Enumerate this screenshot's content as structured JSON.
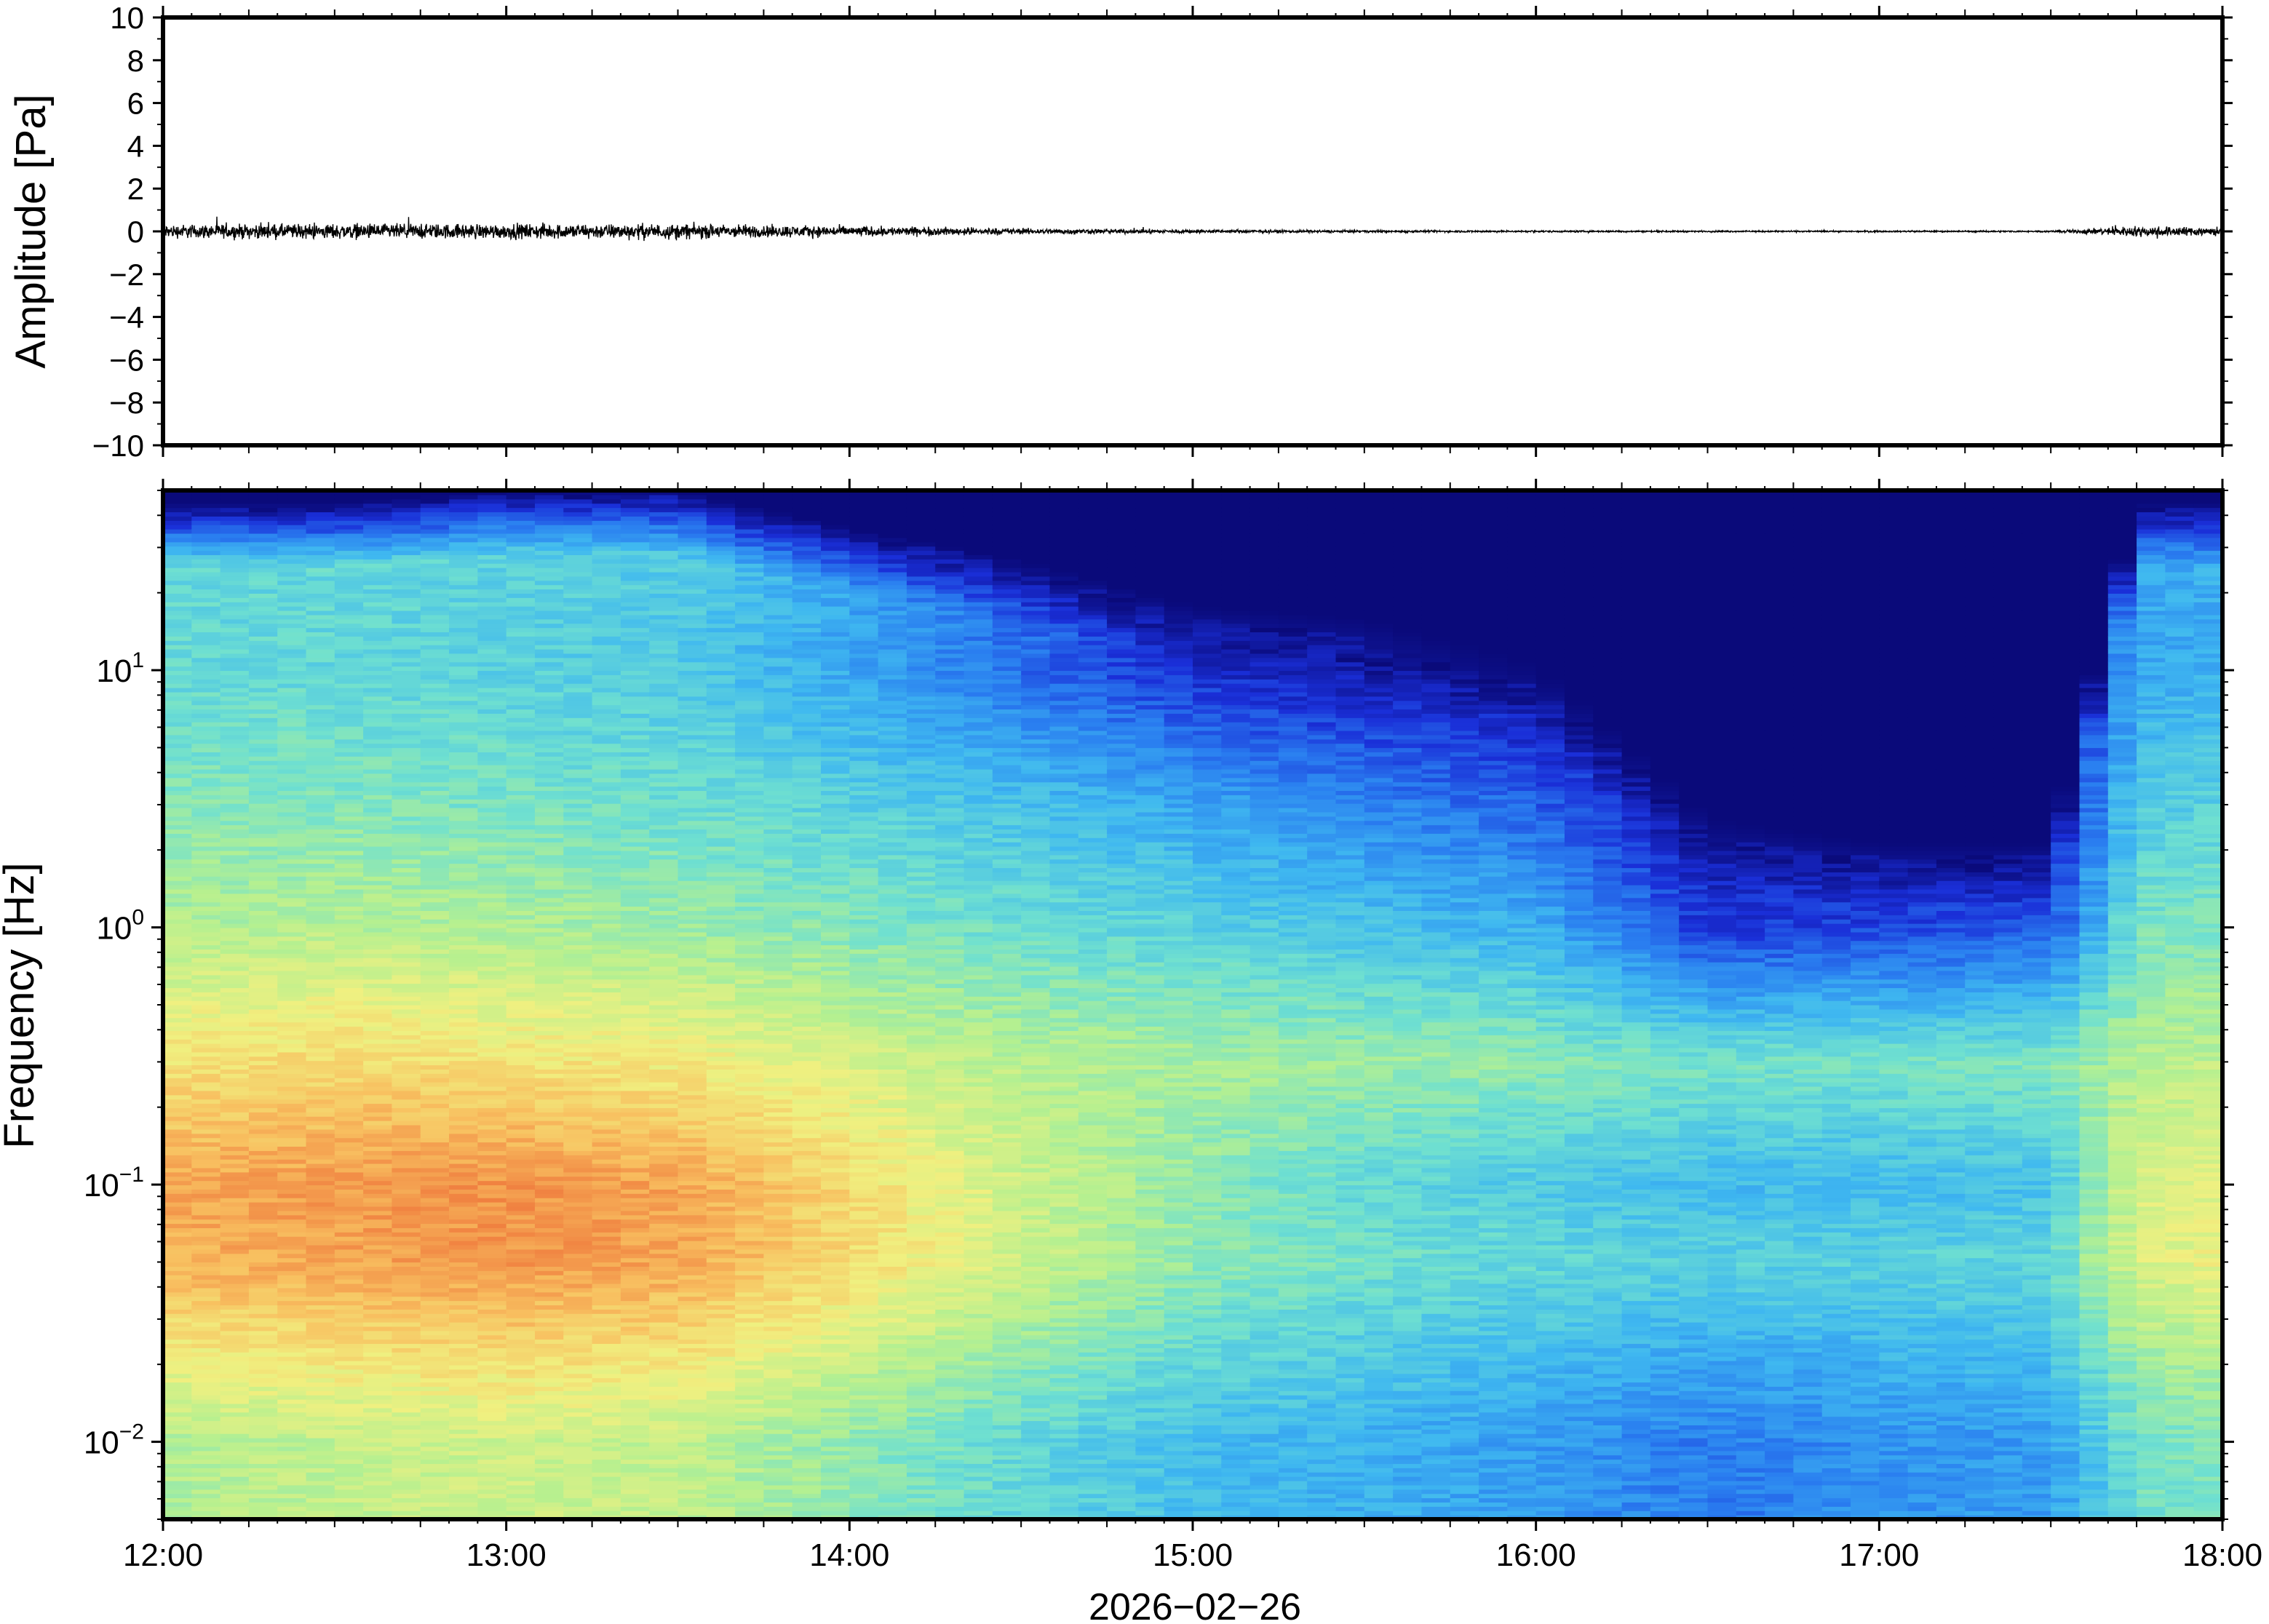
{
  "chart_data": [
    {
      "type": "line",
      "panel": "waveform",
      "ylabel": "Amplitude [Pa]",
      "ylim": [
        -10,
        10
      ],
      "yticks": [
        {
          "value": 10,
          "label": "10"
        },
        {
          "value": 8,
          "label": "8"
        },
        {
          "value": 6,
          "label": "6"
        },
        {
          "value": 4,
          "label": "4"
        },
        {
          "value": 2,
          "label": "2"
        },
        {
          "value": 0,
          "label": "0"
        },
        {
          "value": -2,
          "label": "−2"
        },
        {
          "value": -4,
          "label": "−4"
        },
        {
          "value": -6,
          "label": "−6"
        },
        {
          "value": -8,
          "label": "−8"
        },
        {
          "value": -10,
          "label": "−10"
        }
      ],
      "xlim": [
        "12:00",
        "18:00"
      ],
      "series": [
        {
          "color": "#000000",
          "envelope_note_hours": [
            12.0,
            12.5,
            13.0,
            13.5,
            14.0,
            14.5,
            15.0,
            15.5,
            16.0,
            16.5,
            17.0,
            17.5,
            17.75,
            18.0
          ],
          "envelope_pa": [
            0.45,
            0.5,
            0.5,
            0.5,
            0.35,
            0.2,
            0.12,
            0.08,
            0.06,
            0.05,
            0.05,
            0.05,
            0.35,
            0.3
          ]
        }
      ],
      "grid": false
    },
    {
      "type": "heatmap",
      "panel": "spectrogram",
      "ylabel": "Frequency [Hz]",
      "yscale": "log",
      "ylim": [
        0.005,
        50
      ],
      "yticks": [
        {
          "value": 10,
          "base": "10",
          "exp": "1"
        },
        {
          "value": 1,
          "base": "10",
          "exp": "0"
        },
        {
          "value": 0.1,
          "base": "10",
          "exp": "−1"
        },
        {
          "value": 0.01,
          "base": "10",
          "exp": "−2"
        }
      ],
      "xlabel": "2026−02−26",
      "xlim": [
        "12:00",
        "18:00"
      ],
      "xticks": [
        "12:00",
        "13:00",
        "14:00",
        "15:00",
        "16:00",
        "17:00",
        "18:00"
      ],
      "colormap": "jet",
      "colors": [
        "#0a0a7a",
        "#1a2fd8",
        "#2a7ff0",
        "#3fb8f0",
        "#6fe0d0",
        "#b5f090",
        "#f0f080",
        "#f8c060",
        "#f08040",
        "#e04020"
      ],
      "hours": [
        12.0,
        12.5,
        13.0,
        13.5,
        14.0,
        14.5,
        15.0,
        15.5,
        16.0,
        16.5,
        17.0,
        17.5,
        17.75,
        18.0
      ],
      "upper_edge_hz": [
        25,
        25,
        28,
        28,
        20,
        15,
        10,
        9,
        6,
        1.5,
        1.2,
        1.2,
        25,
        25
      ],
      "levels_note_hz": [
        0.01,
        0.05,
        0.1,
        0.3,
        1,
        3,
        10
      ],
      "levels": [
        [
          0.55,
          0.8,
          0.82,
          0.7,
          0.55,
          0.48,
          0.42
        ],
        [
          0.58,
          0.82,
          0.84,
          0.72,
          0.56,
          0.48,
          0.42
        ],
        [
          0.6,
          0.85,
          0.86,
          0.7,
          0.55,
          0.46,
          0.4
        ],
        [
          0.58,
          0.82,
          0.82,
          0.68,
          0.52,
          0.44,
          0.38
        ],
        [
          0.5,
          0.72,
          0.72,
          0.62,
          0.48,
          0.4,
          0.3
        ],
        [
          0.42,
          0.6,
          0.6,
          0.56,
          0.44,
          0.36,
          0.2
        ],
        [
          0.35,
          0.5,
          0.5,
          0.54,
          0.4,
          0.3,
          0.1
        ],
        [
          0.32,
          0.45,
          0.42,
          0.52,
          0.36,
          0.24,
          0.06
        ],
        [
          0.28,
          0.42,
          0.38,
          0.5,
          0.32,
          0.18,
          0.03
        ],
        [
          0.22,
          0.4,
          0.34,
          0.46,
          0.12,
          0.04,
          0.0
        ],
        [
          0.26,
          0.4,
          0.34,
          0.46,
          0.14,
          0.04,
          0.0
        ],
        [
          0.28,
          0.42,
          0.36,
          0.48,
          0.16,
          0.05,
          0.0
        ],
        [
          0.45,
          0.62,
          0.62,
          0.56,
          0.46,
          0.38,
          0.3
        ],
        [
          0.48,
          0.66,
          0.64,
          0.58,
          0.48,
          0.4,
          0.32
        ]
      ]
    }
  ]
}
